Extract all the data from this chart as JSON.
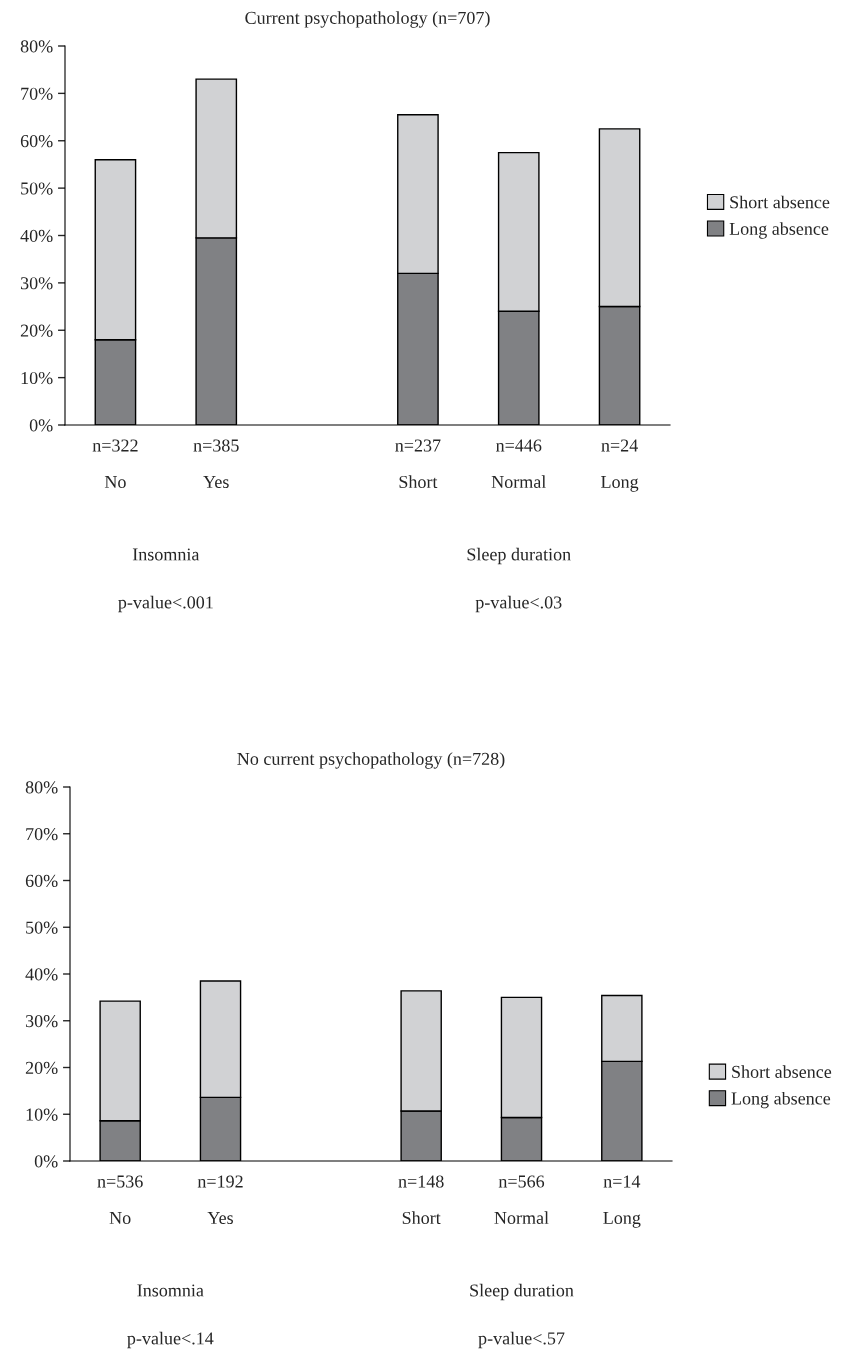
{
  "chart_data": [
    {
      "type": "bar",
      "title": "Current psychopathology (n=707)",
      "categories": [
        "n=322\nNo",
        "n=385\nYes",
        null,
        "n=237\nShort",
        "n=446\nNormal",
        "n=24\nLong"
      ],
      "stacked": true,
      "ylim": [
        0,
        80
      ],
      "yticks": [
        {
          "value": 0,
          "label": "0%"
        },
        {
          "value": 10,
          "label": "10%"
        },
        {
          "value": 20,
          "label": "20%"
        },
        {
          "value": 30,
          "label": "30%"
        },
        {
          "value": 40,
          "label": "40%"
        },
        {
          "value": 50,
          "label": "50%"
        },
        {
          "value": 60,
          "label": "60%"
        },
        {
          "value": 70,
          "label": "70%"
        },
        {
          "value": 80,
          "label": "80%"
        }
      ],
      "grid": false,
      "legend": "right",
      "series": [
        {
          "name": "Long absence",
          "color": "#808184",
          "values": [
            18,
            39.5,
            null,
            32,
            24,
            25
          ]
        },
        {
          "name": "Short absence",
          "color": "#d1d2d4",
          "values": [
            38,
            33.5,
            null,
            33.5,
            33.5,
            37.5
          ]
        }
      ],
      "annotations": [
        "Insomnia",
        "Sleep duration",
        "p-value<.001",
        "p-value<.03"
      ]
    },
    {
      "type": "bar",
      "title": "No current psychopathology (n=728)",
      "categories": [
        "n=536\nNo",
        "n=192\nYes",
        null,
        "n=148\nShort",
        "n=566\nNormal",
        "n=14\nLong"
      ],
      "stacked": true,
      "ylim": [
        0,
        80
      ],
      "yticks": [
        {
          "value": 0,
          "label": "0%"
        },
        {
          "value": 10,
          "label": "10%"
        },
        {
          "value": 20,
          "label": "20%"
        },
        {
          "value": 30,
          "label": "30%"
        },
        {
          "value": 40,
          "label": "40%"
        },
        {
          "value": 50,
          "label": "50%"
        },
        {
          "value": 60,
          "label": "60%"
        },
        {
          "value": 70,
          "label": "70%"
        },
        {
          "value": 80,
          "label": "80%"
        }
      ],
      "grid": false,
      "legend": "bottom right",
      "series": [
        {
          "name": "Long absence",
          "color": "#808184",
          "values": [
            8.6,
            13.6,
            null,
            10.7,
            9.3,
            21.3
          ]
        },
        {
          "name": "Short absence",
          "color": "#d1d2d4",
          "values": [
            25.6,
            24.9,
            null,
            25.7,
            25.7,
            14.1
          ]
        }
      ],
      "annotations": [
        "Insomnia",
        "Sleep duration",
        "p-value<.14",
        "p-value<.57"
      ]
    }
  ]
}
